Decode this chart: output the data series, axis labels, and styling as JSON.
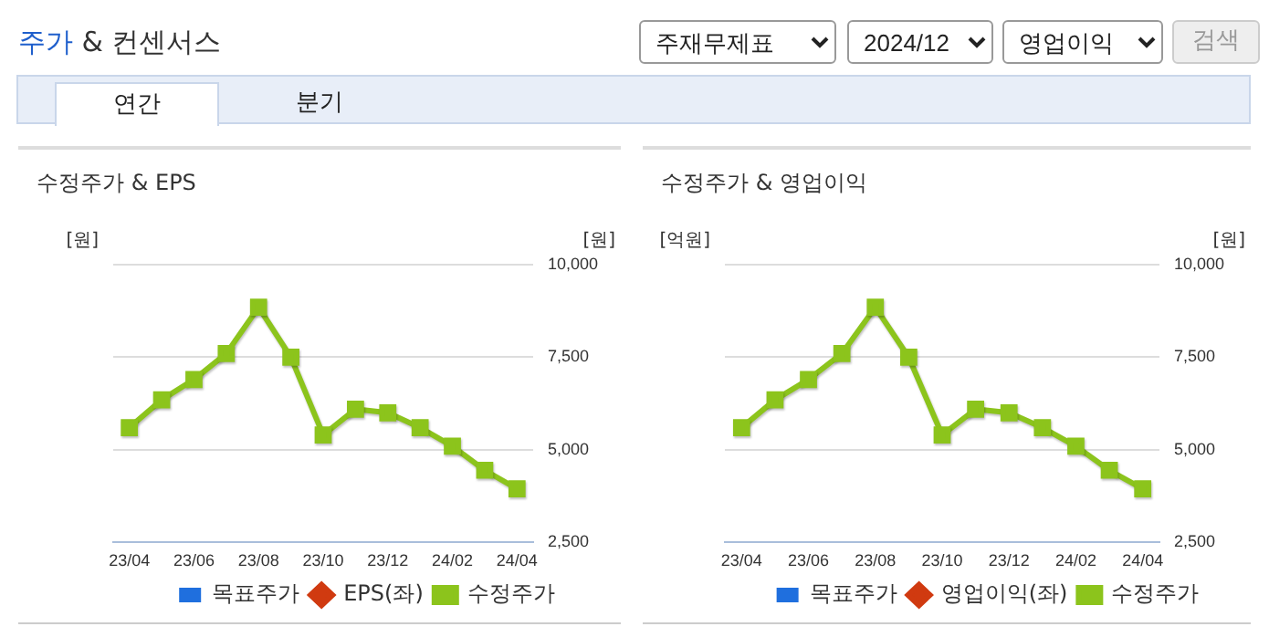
{
  "chart_data": [
    {
      "type": "other",
      "title": "주가 & 컨센서스",
      "annotations": [
        "주재무제표",
        "2024/12",
        "영업이익",
        "검색",
        "연간",
        "분기"
      ]
    },
    {
      "type": "line",
      "title": "수정주가 & EPS",
      "ylabel": "[원]",
      "y2label": "[원]",
      "categories": [
        "23/04",
        null,
        "23/06",
        null,
        "23/08",
        null,
        "23/10",
        null,
        "23/12",
        null,
        "24/02",
        null,
        "24/04"
      ],
      "series": [
        {
          "name": "목표주가",
          "type": "bar",
          "color": "#1f6fde",
          "marker": "square",
          "values": [
            null,
            null,
            null,
            null,
            null,
            null,
            null,
            null,
            null,
            null,
            null,
            null,
            null
          ]
        },
        {
          "name": "EPS(좌)",
          "type": "line",
          "axis": "y",
          "color": "#d03a10",
          "marker": "diamond",
          "values": [
            null,
            null,
            null,
            null,
            null,
            null,
            null,
            null,
            null,
            null,
            null,
            null,
            null
          ]
        },
        {
          "name": "수정주가",
          "type": "line",
          "axis": "y2",
          "color": "#8cc41c",
          "marker": "square",
          "values": [
            5600,
            6350,
            6900,
            7600,
            8850,
            7500,
            5400,
            6100,
            6000,
            5600,
            5100,
            4450,
            3950
          ]
        }
      ],
      "y2lim": [
        2500,
        10000
      ],
      "y2ticks": [
        {
          "value": 2500,
          "label": "2,500"
        },
        {
          "value": 5000,
          "label": "5,000"
        },
        {
          "value": 7500,
          "label": "7,500"
        },
        {
          "value": 10000,
          "label": "10,000"
        }
      ],
      "grid": "y",
      "legend": "bottom",
      "tick_labels": "x"
    },
    {
      "type": "line",
      "title": "수정주가 & 영업이익",
      "ylabel": "[억원]",
      "y2label": "[원]",
      "categories": [
        "23/04",
        null,
        "23/06",
        null,
        "23/08",
        null,
        "23/10",
        null,
        "23/12",
        null,
        "24/02",
        null,
        "24/04"
      ],
      "series": [
        {
          "name": "목표주가",
          "type": "bar",
          "color": "#1f6fde",
          "marker": "square",
          "values": [
            null,
            null,
            null,
            null,
            null,
            null,
            null,
            null,
            null,
            null,
            null,
            null,
            null
          ]
        },
        {
          "name": "영업이익(좌)",
          "type": "line",
          "axis": "y",
          "color": "#d03a10",
          "marker": "diamond",
          "values": [
            null,
            null,
            null,
            null,
            null,
            null,
            null,
            null,
            null,
            null,
            null,
            null,
            null
          ]
        },
        {
          "name": "수정주가",
          "type": "line",
          "axis": "y2",
          "color": "#8cc41c",
          "marker": "square",
          "values": [
            5600,
            6350,
            6900,
            7600,
            8850,
            7500,
            5400,
            6100,
            6000,
            5600,
            5100,
            4450,
            3950
          ]
        }
      ],
      "y2lim": [
        2500,
        10000
      ],
      "y2ticks": [
        {
          "value": 2500,
          "label": "2,500"
        },
        {
          "value": 5000,
          "label": "5,000"
        },
        {
          "value": 7500,
          "label": "7,500"
        },
        {
          "value": 10000,
          "label": "10,000"
        }
      ],
      "grid": "y",
      "legend": "bottom",
      "tick_labels": "x"
    }
  ]
}
